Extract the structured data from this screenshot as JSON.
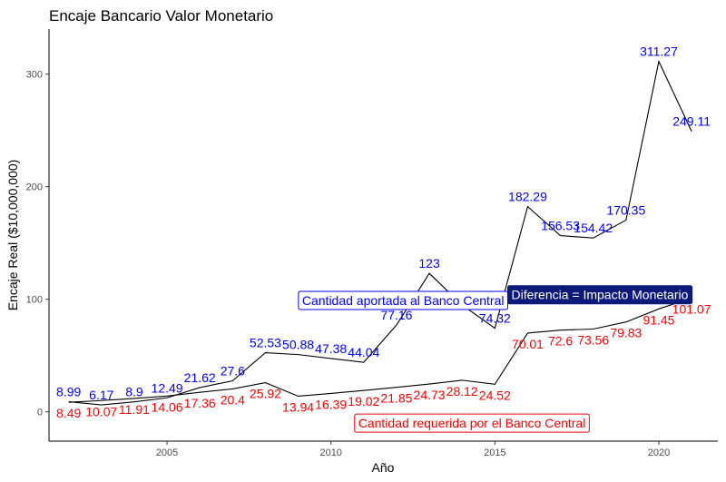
{
  "chart_data": {
    "type": "line",
    "title": "Encaje Bancario Valor Monetario",
    "xlabel": "Año",
    "ylabel": "Encaje Real ($10,000,000)",
    "xlim": [
      2001.4,
      2021.8
    ],
    "ylim": [
      -26,
      340
    ],
    "x_ticks": [
      2005,
      2010,
      2015,
      2020
    ],
    "y_ticks": [
      0,
      100,
      200,
      300
    ],
    "grid": false,
    "x": [
      2002,
      2003,
      2004,
      2005,
      2006,
      2007,
      2008,
      2009,
      2010,
      2011,
      2012,
      2013,
      2014,
      2015,
      2016,
      2017,
      2018,
      2019,
      2020,
      2021
    ],
    "series": [
      {
        "label_color": "#0000ff",
        "values": [
          8.99,
          6.17,
          8.9,
          12.49,
          21.62,
          27.6,
          52.53,
          50.88,
          47.38,
          44.04,
          77.16,
          123,
          94.96,
          74.32,
          182.29,
          156.53,
          154.42,
          170.35,
          311.27,
          249.11
        ]
      },
      {
        "label_color": "#ff0000",
        "values": [
          8.49,
          10.07,
          11.91,
          14.06,
          17.36,
          20.4,
          25.92,
          13.94,
          16.39,
          19.02,
          21.85,
          24.73,
          28.12,
          24.52,
          70.01,
          72.6,
          73.56,
          79.83,
          91.45,
          101.07
        ]
      }
    ],
    "annotations": [
      {
        "text": "Cantidad aportada al Banco Central",
        "style": "box",
        "color": "#0000ff"
      },
      {
        "text": "Cantidad requerida por el Banco Central",
        "style": "box",
        "color": "#ff0000"
      },
      {
        "text": "Diferencia = Impacto Monetario",
        "style": "filled",
        "color": "#ffffff",
        "fill": "#0d1a7a"
      }
    ]
  }
}
